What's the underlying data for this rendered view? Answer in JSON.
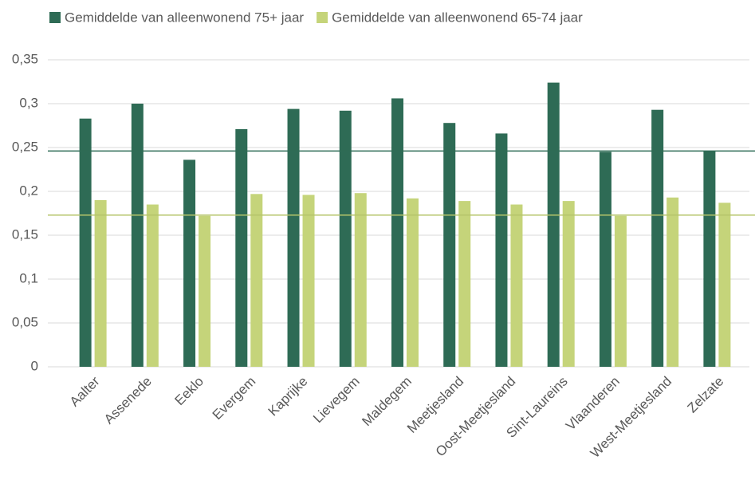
{
  "chart_data": {
    "type": "bar",
    "categories": [
      "Aalter",
      "Assenede",
      "Eeklo",
      "Evergem",
      "Kaprijke",
      "Lievegem",
      "Maldegem",
      "Meetjesland",
      "Oost-Meetjesland",
      "Sint-Laureins",
      "Vlaanderen",
      "West-Meetjesland",
      "Zelzate"
    ],
    "series": [
      {
        "name": "Gemiddelde van alleenwonend 75+ jaar",
        "color": "#2e6b55",
        "values": [
          0.283,
          0.3,
          0.236,
          0.271,
          0.294,
          0.292,
          0.306,
          0.278,
          0.266,
          0.324,
          0.245,
          0.293,
          0.246
        ]
      },
      {
        "name": "Gemiddelde van alleenwonend 65-74 jaar",
        "color": "#c5d47a",
        "values": [
          0.19,
          0.185,
          0.172,
          0.197,
          0.196,
          0.198,
          0.192,
          0.189,
          0.185,
          0.189,
          0.172,
          0.193,
          0.187
        ]
      }
    ],
    "hlines": [
      {
        "value": 0.246,
        "color": "#2e6b55"
      },
      {
        "value": 0.173,
        "color": "#b5c46a"
      }
    ],
    "ylim": [
      0,
      0.35
    ],
    "yticks": [
      0,
      {
        "value": 0.05,
        "label": "0,05"
      },
      {
        "value": 0.1,
        "label": "0,1"
      },
      {
        "value": 0.15,
        "label": "0,15"
      },
      {
        "value": 0.2,
        "label": "0,2"
      },
      {
        "value": 0.25,
        "label": "0,25"
      },
      {
        "value": 0.3,
        "label": "0,3"
      },
      {
        "value": 0.35,
        "label": "0,35"
      }
    ],
    "grid": true,
    "legend": "top"
  }
}
